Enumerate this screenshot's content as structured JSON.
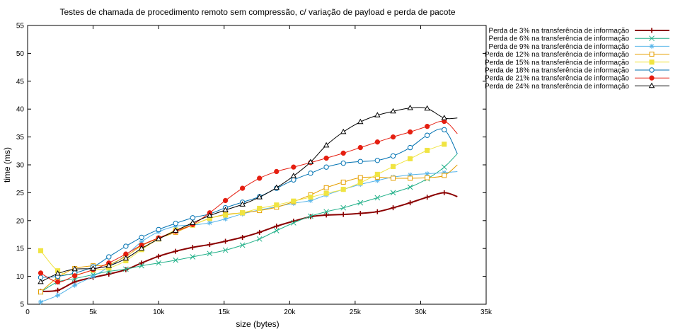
{
  "chart_data": {
    "type": "line",
    "title": "Testes de chamada de procedimento remoto sem compressão, c/ variação de payload e perda de pacote",
    "xlabel": "size (bytes)",
    "ylabel": "time (ms)",
    "xlim": [
      0,
      35000
    ],
    "ylim": [
      5,
      55
    ],
    "xticks": [
      0,
      5000,
      10000,
      15000,
      20000,
      25000,
      30000,
      35000
    ],
    "xtick_labels": [
      "0",
      "5k",
      "10k",
      "15k",
      "20k",
      "25k",
      "30k",
      "35k"
    ],
    "yticks": [
      5,
      10,
      15,
      20,
      25,
      30,
      35,
      40,
      45,
      50,
      55
    ],
    "ytick_labels": [
      "5",
      "10",
      "15",
      "20",
      "25",
      "30",
      "35",
      "40",
      "45",
      "50",
      "55"
    ],
    "grid": false,
    "legend_position": "outside-top-right",
    "x": [
      1000,
      2300,
      3600,
      5000,
      6200,
      7500,
      8700,
      10000,
      11300,
      12600,
      13900,
      15100,
      16400,
      17700,
      19000,
      20300,
      21600,
      22800,
      24100,
      25400,
      26700,
      27900,
      29200,
      30500,
      31800
    ],
    "series": [
      {
        "name": "Perda de 3% na transferência de informação",
        "color": "#8b0000",
        "marker": "plus",
        "line_width": 2,
        "values": [
          7.3,
          7.5,
          9.0,
          9.8,
          10.4,
          11.2,
          12.4,
          13.6,
          14.5,
          15.2,
          15.7,
          16.3,
          17.0,
          17.9,
          19.0,
          19.9,
          20.7,
          21.0,
          21.1,
          21.3,
          21.6,
          22.3,
          23.2,
          24.2,
          25.0
        ],
        "curve_end": {
          "x": 32800,
          "y": 24.3
        }
      },
      {
        "name": "Perda de 6% na transferência de informação",
        "color": "#20b088",
        "marker": "x",
        "line_width": 1,
        "values": [
          7.2,
          9.0,
          9.6,
          10.3,
          10.9,
          11.3,
          11.9,
          12.4,
          12.9,
          13.5,
          14.1,
          14.7,
          15.6,
          16.7,
          18.2,
          19.6,
          20.8,
          21.6,
          22.3,
          23.2,
          24.1,
          25.0,
          26.0,
          27.5,
          29.6
        ],
        "curve_end": {
          "x": 32800,
          "y": 32.0
        }
      },
      {
        "name": "Perda de 9% na transferência de informação",
        "color": "#56b4e9",
        "marker": "star",
        "line_width": 1,
        "values": [
          5.4,
          6.6,
          8.4,
          10.0,
          11.7,
          13.8,
          16.2,
          18.0,
          19.0,
          19.2,
          19.6,
          20.3,
          21.2,
          21.9,
          22.5,
          23.1,
          23.6,
          24.6,
          25.6,
          26.5,
          27.2,
          27.8,
          28.2,
          28.4,
          28.6
        ],
        "curve_end": {
          "x": 32800,
          "y": 28.8
        }
      },
      {
        "name": "Perda de 12% na transferência de informação",
        "color": "#e69f00",
        "marker": "open-square",
        "line_width": 1,
        "values": [
          7.2,
          9.8,
          11.4,
          11.9,
          12.1,
          13.6,
          15.5,
          16.8,
          17.9,
          19.2,
          20.4,
          21.1,
          21.4,
          21.8,
          22.4,
          23.4,
          24.6,
          25.9,
          26.9,
          27.7,
          27.8,
          27.6,
          27.6,
          27.7,
          28.1
        ],
        "curve_end": {
          "x": 32800,
          "y": 30.0
        }
      },
      {
        "name": "Perda de 15% na transferência de informação",
        "color": "#f0e442",
        "marker": "filled-square",
        "line_width": 1,
        "values": [
          14.6,
          11.0,
          10.3,
          11.1,
          11.5,
          12.8,
          14.8,
          16.7,
          18.3,
          19.2,
          20.4,
          21.0,
          21.4,
          22.2,
          22.8,
          23.5,
          24.2,
          24.9,
          25.6,
          26.8,
          28.3,
          29.7,
          31.1,
          32.6,
          33.7
        ],
        "curve_end": null
      },
      {
        "name": "Perda de 18% na transferência de informação",
        "color": "#0072b2",
        "marker": "open-circle",
        "line_width": 1,
        "values": [
          9.8,
          10.0,
          10.6,
          11.7,
          13.5,
          15.4,
          17.0,
          18.4,
          19.5,
          20.5,
          21.2,
          22.3,
          23.3,
          24.3,
          25.8,
          27.3,
          28.5,
          29.6,
          30.3,
          30.6,
          30.8,
          31.6,
          33.1,
          35.3,
          36.3
        ],
        "curve_end": {
          "x": 32800,
          "y": 32.0
        }
      },
      {
        "name": "Perda de 21% na transferência de informação",
        "color": "#e51e10",
        "marker": "filled-circle",
        "line_width": 1,
        "values": [
          10.6,
          9.0,
          10.1,
          11.2,
          12.4,
          14.0,
          15.6,
          16.9,
          18.1,
          19.3,
          21.4,
          23.6,
          25.8,
          27.6,
          28.8,
          29.6,
          30.4,
          31.2,
          32.1,
          33.1,
          34.1,
          35.0,
          35.9,
          36.9,
          37.8
        ],
        "curve_end": {
          "x": 32800,
          "y": 35.6
        }
      },
      {
        "name": "Perda de 24% na transferência de informação",
        "color": "#000000",
        "marker": "open-triangle",
        "line_width": 1,
        "values": [
          9.0,
          10.5,
          11.3,
          11.4,
          11.9,
          13.2,
          15.0,
          16.7,
          18.2,
          19.6,
          20.9,
          21.9,
          22.9,
          24.2,
          25.9,
          28.0,
          30.5,
          33.5,
          35.9,
          37.7,
          38.9,
          39.6,
          40.2,
          40.1,
          38.4
        ],
        "curve_end": {
          "x": 32800,
          "y": 38.4
        }
      }
    ]
  }
}
